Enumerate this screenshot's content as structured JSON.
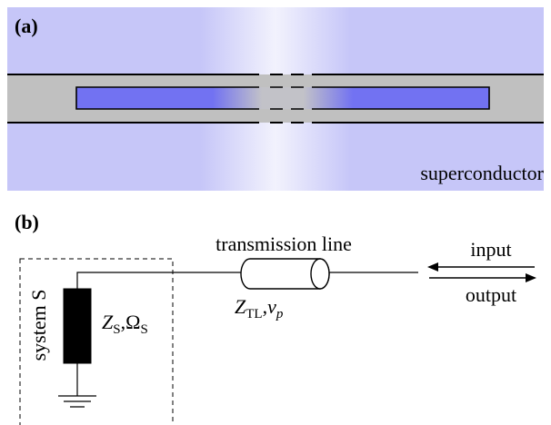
{
  "panel_a": {
    "label": "(a)",
    "material": "superconductor"
  },
  "panel_b": {
    "label": "(b)",
    "line_label": "transmission line",
    "input": "input",
    "output": "output",
    "system": "system S",
    "system_params": {
      "parts": [
        "Z",
        "S",
        ",Ω",
        "S"
      ]
    },
    "line_params": {
      "parts": [
        "Z",
        "TL",
        ",",
        "v",
        "p"
      ]
    }
  }
}
